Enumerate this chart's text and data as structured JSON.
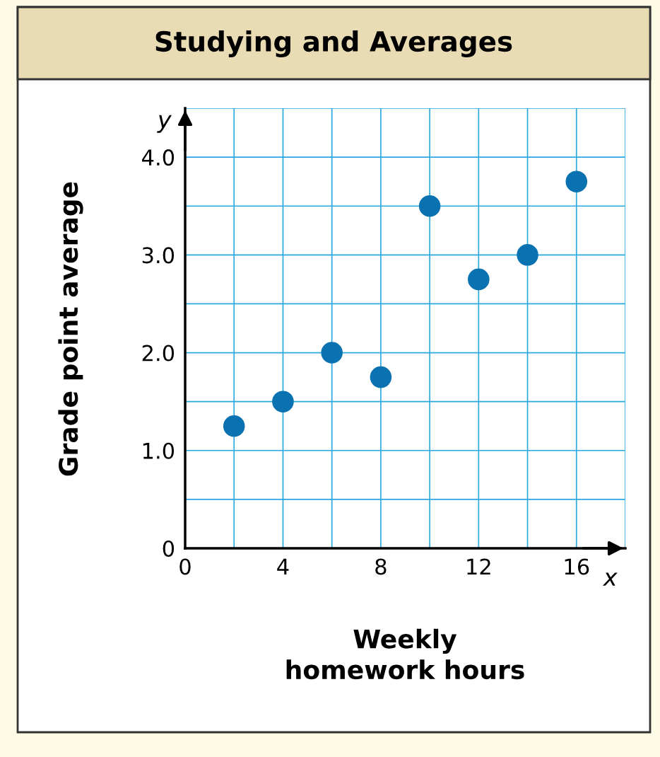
{
  "chart_data": {
    "type": "scatter",
    "title": "Studying and Averages",
    "xlabel": "Weekly\nhomework hours",
    "ylabel": "Grade point average",
    "x": [
      2,
      4,
      6,
      8,
      10,
      12,
      14,
      16
    ],
    "series": [
      {
        "color": "#0a72b0",
        "values": [
          1.25,
          1.5,
          2.0,
          1.75,
          3.5,
          2.75,
          3.0,
          3.75
        ]
      }
    ],
    "marker": "circle",
    "grid": true,
    "xlim": [
      0,
      18
    ],
    "xticks": [
      0,
      {
        "value": 2,
        "label": null
      },
      4,
      {
        "value": 6,
        "label": null
      },
      8,
      {
        "value": 10,
        "label": null
      },
      12,
      {
        "value": 14,
        "label": null
      },
      16,
      {
        "value": 18,
        "label": null
      }
    ],
    "ylim": [
      0,
      4.5
    ],
    "yticks": [
      0,
      {
        "value": 0.5,
        "label": null
      },
      {
        "value": 1,
        "label": "1.0"
      },
      {
        "value": 1.5,
        "label": null
      },
      {
        "value": 2,
        "label": "2.0"
      },
      {
        "value": 2.5,
        "label": null
      },
      {
        "value": 3,
        "label": "3.0"
      },
      {
        "value": 3.5,
        "label": null
      },
      {
        "value": 4,
        "label": "4.0"
      },
      {
        "value": 4.5,
        "label": null
      }
    ],
    "annotations": [
      "x",
      "y"
    ]
  }
}
